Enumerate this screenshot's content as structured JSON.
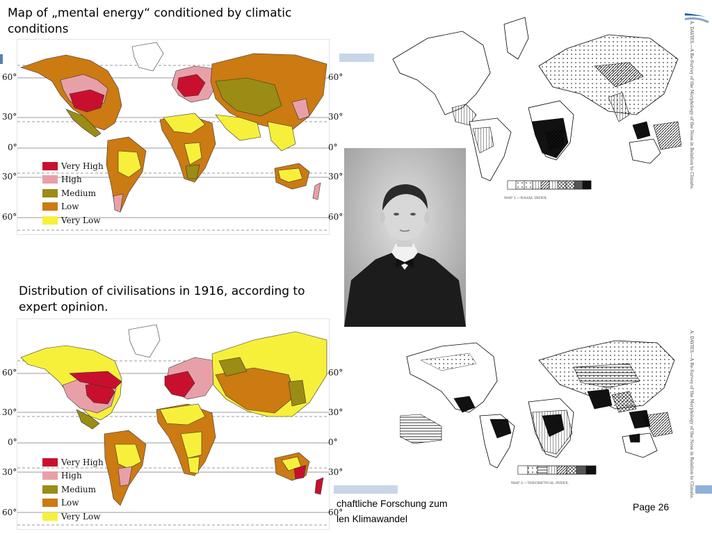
{
  "map1": {
    "title": "Map of „mental energy“ conditioned by climatic conditions",
    "lat_labels": [
      "60°",
      "30°",
      "0°",
      "30°",
      "60°"
    ],
    "legend": [
      {
        "label": "Very High",
        "color": "#c8102e"
      },
      {
        "label": "High",
        "color": "#e8a0a8"
      },
      {
        "label": "Medium",
        "color": "#9a8c14"
      },
      {
        "label": "Low",
        "color": "#cc7a12"
      },
      {
        "label": "Very Low",
        "color": "#f7f03a"
      }
    ]
  },
  "map2": {
    "title": "Distribution of civilisations in 1916, according to expert opinion.",
    "lat_labels": [
      "60°",
      "30°",
      "0°",
      "30°",
      "60°"
    ],
    "legend": [
      {
        "label": "Very High",
        "color": "#c8102e"
      },
      {
        "label": "High",
        "color": "#e8a0a8"
      },
      {
        "label": "Medium",
        "color": "#9a8c14"
      },
      {
        "label": "Low",
        "color": "#cc7a12"
      },
      {
        "label": "Very Low",
        "color": "#f7f03a"
      }
    ]
  },
  "scan1": {
    "caption": "MAP 1.—NASAL INDEX.",
    "side_text": "A. DAVIES.—A Re-Survey of the Morphology of the Nose in Relation to Climate."
  },
  "scan2": {
    "caption": "MAP 3.—THEORETICAL INDEX.",
    "side_text": "A. DAVIES.—A Re-Survey of the Morphology of the Nose in Relation to Climate."
  },
  "footer": {
    "line1": "chaftliche Forschung zum",
    "line2": "len Klimawandel",
    "page": "Page 26"
  },
  "colors": {
    "accent_blue": "#1f5c99",
    "light_blue": "#c8d6e8"
  }
}
